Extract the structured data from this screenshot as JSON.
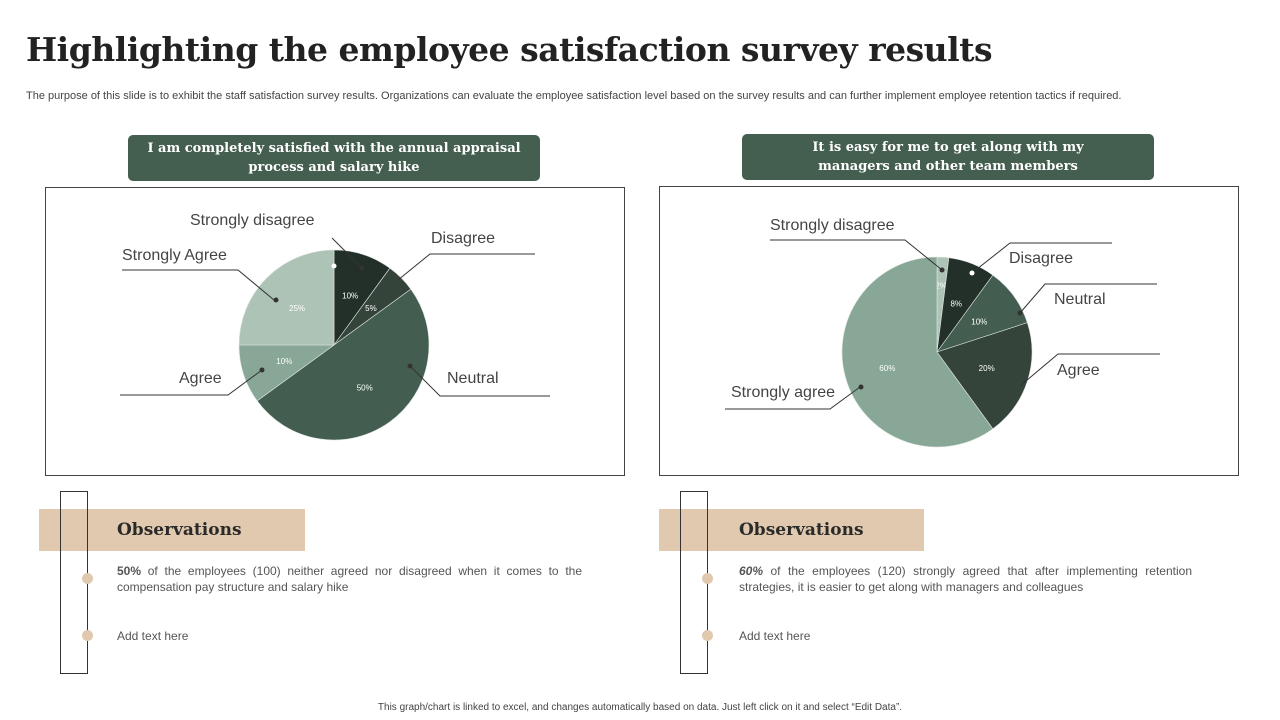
{
  "title": "Highlighting the employee satisfaction survey results",
  "subtitle": "The purpose of this slide is to exhibit the staff satisfaction survey results. Organizations can evaluate the employee satisfaction level based on the survey results and can further implement employee retention tactics if required.",
  "chart_data": [
    {
      "type": "pie",
      "title": "I am completely satisfied with the annual appraisal process and salary hike",
      "categories": [
        "Strongly disagree",
        "Disagree",
        "Neutral",
        "Agree",
        "Strongly Agree"
      ],
      "values": [
        10,
        5,
        50,
        10,
        25
      ],
      "value_labels": [
        "10%",
        "5%",
        "50%",
        "10%",
        "25%"
      ],
      "colors": [
        "#23302a",
        "#34443b",
        "#435e50",
        "#88a796",
        "#adc3b6"
      ],
      "label_colors": [
        "#fff",
        "#fff",
        "#fff",
        "#666",
        "#666"
      ]
    },
    {
      "type": "pie",
      "title": "It is easy for me to get along with my managers and other team members",
      "categories": [
        "Strongly disagree",
        "Disagree",
        "Neutral",
        "Agree",
        "Strongly agree"
      ],
      "values": [
        2,
        8,
        10,
        20,
        60
      ],
      "value_labels": [
        "2%",
        "8%",
        "10%",
        "20%",
        "60%"
      ],
      "colors": [
        "#adc3b6",
        "#23302a",
        "#435e50",
        "#34443b",
        "#88a796"
      ],
      "label_colors": [
        "#fff",
        "#fff",
        "#fff",
        "#fff",
        "#555"
      ]
    }
  ],
  "observations": [
    {
      "heading": "Observations",
      "bold": "50%",
      "text": " of the employees (100) neither agreed nor disagreed when it comes to the compensation pay structure and salary hike",
      "extra": "Add text here"
    },
    {
      "heading": "Observations",
      "bold": "60%",
      "text": " of the employees (120) strongly agreed that after implementing retention strategies, it is easier to get along with managers and colleagues",
      "extra": "Add text here"
    }
  ],
  "footer": "This graph/chart is linked to excel, and changes automatically based on data. Just left click on it and select “Edit Data”."
}
